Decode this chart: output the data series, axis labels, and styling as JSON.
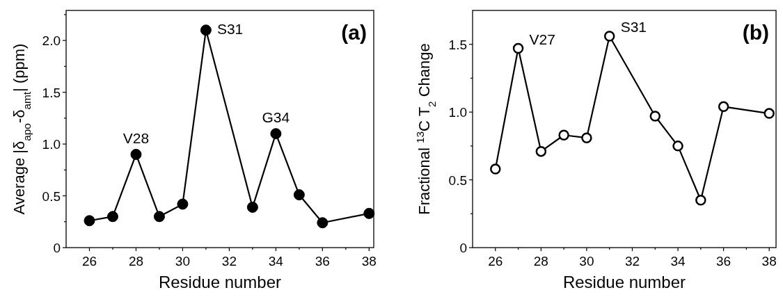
{
  "chart_data": [
    {
      "type": "line",
      "xlabel": "Residue number",
      "ylabel": "Average |δ$_{apo}$-δ$_{amt}$| (ppm)",
      "x": [
        26,
        27,
        28,
        29,
        30,
        31,
        33,
        34,
        35,
        36,
        38
      ],
      "series": [
        {
          "color": "#000000",
          "values": [
            0.26,
            0.3,
            0.9,
            0.3,
            0.42,
            2.1,
            0.39,
            1.1,
            0.51,
            0.24,
            0.33
          ]
        }
      ],
      "marker": "circle",
      "line_style": "solid",
      "grid": false,
      "xlim": [
        25,
        38.2
      ],
      "xticks": [
        26,
        {
          "value": 27,
          "label": null
        },
        28,
        {
          "value": 29,
          "label": null
        },
        30,
        {
          "value": 31,
          "label": null
        },
        32,
        {
          "value": 33,
          "label": null
        },
        34,
        {
          "value": 35,
          "label": null
        },
        36,
        {
          "value": 37,
          "label": null
        },
        38
      ],
      "ylim": [
        0,
        2.29
      ],
      "yticks": [
        0,
        {
          "value": 0.25,
          "label": null
        },
        0.5,
        {
          "value": 0.75,
          "label": null
        },
        {
          "value": 1,
          "label": "1.0"
        },
        {
          "value": 1.25,
          "label": null
        },
        1.5,
        {
          "value": 1.75,
          "label": null
        },
        {
          "value": 2,
          "label": "2.0"
        },
        {
          "value": 2.25,
          "label": null
        }
      ],
      "annotations": [
        "(a)",
        {
          "text": "V28",
          "x": 28,
          "y": 0.9
        },
        {
          "text": "S31",
          "x": 31,
          "y": 2.1
        },
        {
          "text": "G34",
          "x": 34,
          "y": 1.1
        }
      ]
    },
    {
      "type": "line",
      "xlabel": "Residue number",
      "ylabel": "Fractional $^{13}$C T$_{2}$ Change",
      "x": [
        26,
        27,
        28,
        29,
        30,
        31,
        33,
        34,
        35,
        36,
        38
      ],
      "series": [
        {
          "color": "#000000",
          "values": [
            0.58,
            1.47,
            0.71,
            0.83,
            0.81,
            1.56,
            0.97,
            0.75,
            0.35,
            1.04,
            0.99
          ]
        }
      ],
      "marker": "circle",
      "line_style": "solid",
      "grid": false,
      "xlim": [
        25,
        38.3
      ],
      "xticks": [
        26,
        {
          "value": 27,
          "label": null
        },
        28,
        {
          "value": 29,
          "label": null
        },
        30,
        {
          "value": 31,
          "label": null
        },
        32,
        {
          "value": 33,
          "label": null
        },
        34,
        {
          "value": 35,
          "label": null
        },
        36,
        {
          "value": 37,
          "label": null
        },
        38
      ],
      "ylim": [
        0,
        1.75
      ],
      "yticks": [
        0,
        {
          "value": 0.25,
          "label": null
        },
        0.5,
        {
          "value": 0.75,
          "label": null
        },
        {
          "value": 1,
          "label": "1.0"
        },
        {
          "value": 1.25,
          "label": null
        },
        1.5
      ],
      "annotations": [
        "(b)",
        {
          "text": "V27",
          "x": 27,
          "y": 1.47
        },
        {
          "text": "S31",
          "x": 31,
          "y": 1.56
        }
      ]
    }
  ]
}
